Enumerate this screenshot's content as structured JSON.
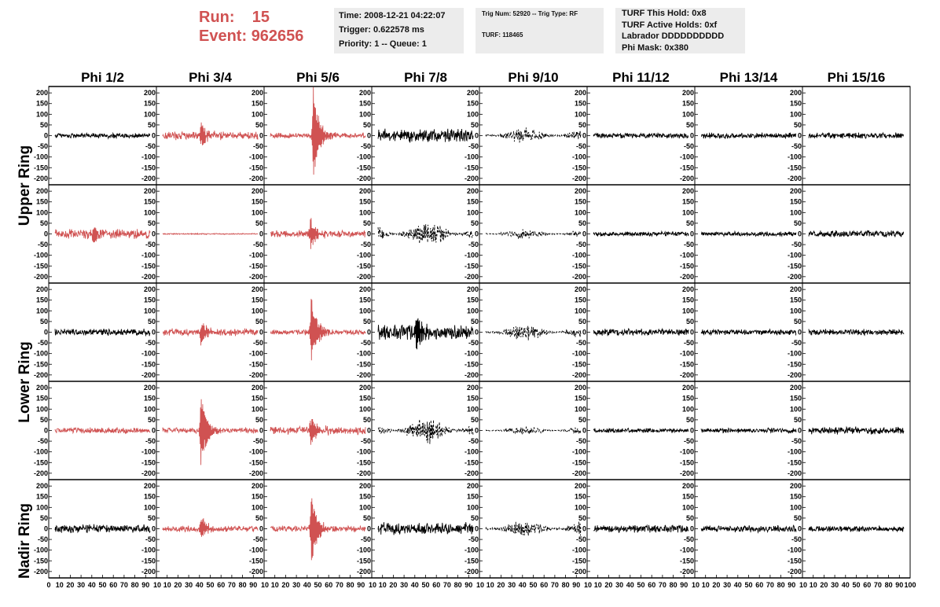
{
  "header": {
    "run_label": "Run:",
    "run_value": "15",
    "event_label": "Event:",
    "event_value": "962656"
  },
  "info_time": {
    "time": "Time: 2008-12-21 04:22:07",
    "trigger": "Trigger: 0.622578 ms",
    "priority": "Priority: 1 -- Queue: 1"
  },
  "info_trig": {
    "trig": "Trig Num: 52920 -- Trig Type: RF",
    "turf": "TURF: 118465"
  },
  "info_turf": {
    "hold": "TURF This Hold: 0x8",
    "active": "TURF Active Holds: 0xf",
    "labrador": "Labrador DDDDDDDDDD",
    "phimask": "Phi Mask: 0x380"
  },
  "ring_labels": {
    "upper": "Upper Ring",
    "lower": "Lower Ring",
    "nadir": "Nadir Ring"
  },
  "colors": {
    "highlight": "#d05252",
    "trace": "#000000",
    "info_bg": "#ececec"
  },
  "chart_data": {
    "type": "line",
    "columns": [
      "Phi 1/2",
      "Phi 3/4",
      "Phi 5/6",
      "Phi 7/8",
      "Phi 9/10",
      "Phi 11/12",
      "Phi 13/14",
      "Phi 15/16"
    ],
    "ylim": [
      -230,
      230
    ],
    "xlim": [
      0,
      100
    ],
    "y_ticks": [
      200,
      150,
      100,
      50,
      0,
      -50,
      -100,
      -150,
      -200
    ],
    "x_ticks": [
      0,
      10,
      20,
      30,
      40,
      50,
      60,
      70,
      80,
      90,
      100
    ],
    "grid": false,
    "rows": [
      {
        "cells": [
          {
            "color": "black",
            "style": "noise",
            "amp": 14
          },
          {
            "color": "red",
            "style": "noise",
            "amp": 22,
            "burst_at": 40,
            "burst_amp": 70
          },
          {
            "color": "red",
            "style": "pulse",
            "amp": 14,
            "burst_at": 45,
            "burst_amp": 225
          },
          {
            "color": "black",
            "style": "noise",
            "amp": 35
          },
          {
            "color": "black",
            "style": "dashed",
            "amp": 40
          },
          {
            "color": "black",
            "style": "noise",
            "amp": 14
          },
          {
            "color": "black",
            "style": "noise",
            "amp": 15
          },
          {
            "color": "black",
            "style": "noise",
            "amp": 16
          }
        ]
      },
      {
        "cells": [
          {
            "color": "red",
            "style": "noise",
            "amp": 25,
            "burst_at": 40,
            "burst_amp": 45
          },
          {
            "color": "red",
            "style": "flat",
            "amp": 3
          },
          {
            "color": "red",
            "style": "pulse",
            "amp": 18,
            "burst_at": 42,
            "burst_amp": 80
          },
          {
            "color": "black",
            "style": "dashed",
            "amp": 70
          },
          {
            "color": "black",
            "style": "dashed",
            "amp": 25
          },
          {
            "color": "black",
            "style": "noise",
            "amp": 12
          },
          {
            "color": "black",
            "style": "noise",
            "amp": 12
          },
          {
            "color": "black",
            "style": "noise",
            "amp": 18
          }
        ]
      },
      {
        "cells": [
          {
            "color": "black",
            "style": "noise",
            "amp": 18
          },
          {
            "color": "red",
            "style": "noise",
            "amp": 20,
            "burst_at": 40,
            "burst_amp": 60
          },
          {
            "color": "red",
            "style": "pulse",
            "amp": 14,
            "burst_at": 43,
            "burst_amp": 180
          },
          {
            "color": "black",
            "style": "noise",
            "amp": 40,
            "burst_at": 40,
            "burst_amp": 100
          },
          {
            "color": "black",
            "style": "dashed",
            "amp": 45
          },
          {
            "color": "black",
            "style": "noise",
            "amp": 18
          },
          {
            "color": "black",
            "style": "noise",
            "amp": 14
          },
          {
            "color": "black",
            "style": "noise",
            "amp": 16
          }
        ]
      },
      {
        "cells": [
          {
            "color": "red",
            "style": "noise",
            "amp": 16
          },
          {
            "color": "red",
            "style": "pulse",
            "amp": 16,
            "burst_at": 40,
            "burst_amp": 175
          },
          {
            "color": "red",
            "style": "noise",
            "amp": 22,
            "burst_at": 42,
            "burst_amp": 70
          },
          {
            "color": "black",
            "style": "dashed",
            "amp": 70
          },
          {
            "color": "black",
            "style": "dashed",
            "amp": 22
          },
          {
            "color": "black",
            "style": "noise",
            "amp": 12
          },
          {
            "color": "black",
            "style": "noise",
            "amp": 13
          },
          {
            "color": "black",
            "style": "noise",
            "amp": 20
          }
        ]
      },
      {
        "cells": [
          {
            "color": "black",
            "style": "noise",
            "amp": 22
          },
          {
            "color": "red",
            "style": "noise",
            "amp": 16,
            "burst_at": 40,
            "burst_amp": 60
          },
          {
            "color": "red",
            "style": "pulse",
            "amp": 16,
            "burst_at": 43,
            "burst_amp": 180
          },
          {
            "color": "black",
            "style": "noise",
            "amp": 35
          },
          {
            "color": "black",
            "style": "dashed",
            "amp": 45
          },
          {
            "color": "black",
            "style": "noise",
            "amp": 20
          },
          {
            "color": "black",
            "style": "noise",
            "amp": 18
          },
          {
            "color": "black",
            "style": "noise",
            "amp": 16
          }
        ]
      }
    ]
  }
}
